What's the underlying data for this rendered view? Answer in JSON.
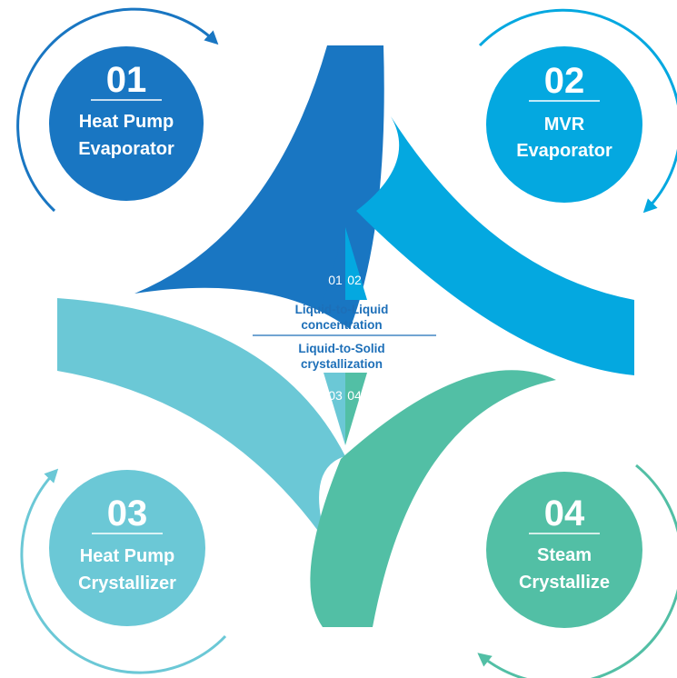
{
  "colors": {
    "s1": "#1976c2",
    "s2": "#04a8e0",
    "s3": "#6bc8d6",
    "s4": "#52bfa5",
    "center_text": "#1d6fb8"
  },
  "stages": [
    {
      "number": "01",
      "line1": "Heat Pump",
      "line2": "Evaporator"
    },
    {
      "number": "02",
      "line1": "MVR",
      "line2": "Evaporator"
    },
    {
      "number": "03",
      "line1": "Heat Pump",
      "line2": "Crystallizer"
    },
    {
      "number": "04",
      "line1": "Steam",
      "line2": "Crystallize"
    }
  ],
  "center": {
    "top_line1": "Liquid-to-Liquid",
    "top_line2": "concentration",
    "bottom_line1": "Liquid-to-Solid",
    "bottom_line2": "crystallization",
    "top_numbers": [
      "01",
      "02"
    ],
    "bottom_numbers": [
      "03",
      "04"
    ]
  }
}
